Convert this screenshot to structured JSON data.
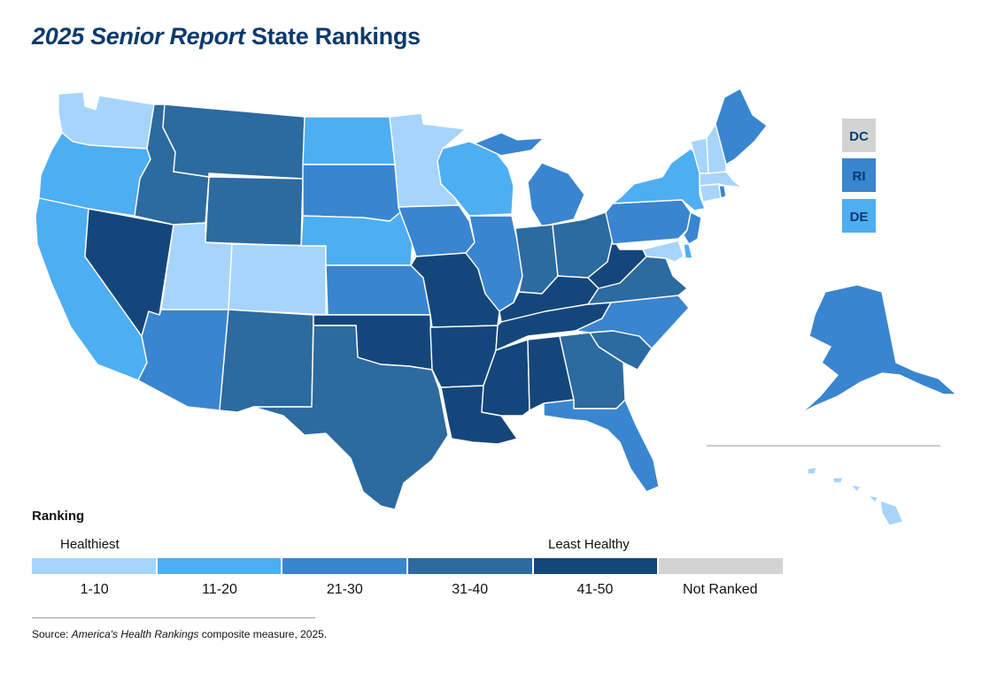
{
  "title": {
    "italic": "2025 Senior Report",
    "rest": " State Rankings"
  },
  "colors": {
    "1-10": "#a7d4fb",
    "11-20": "#4eaef2",
    "21-30": "#3a85d0",
    "31-40": "#2c6aa0",
    "41-50": "#15467b",
    "Not Ranked": "#d3d3d3",
    "title": "#0b3b6e"
  },
  "legend": {
    "heading": "Ranking",
    "healthiest": "Healthiest",
    "least_healthy": "Least Healthy",
    "categories": [
      "1-10",
      "11-20",
      "21-30",
      "31-40",
      "41-50",
      "Not Ranked"
    ]
  },
  "small_states": [
    {
      "abbr": "DC",
      "category": "Not Ranked"
    },
    {
      "abbr": "RI",
      "category": "21-30"
    },
    {
      "abbr": "DE",
      "category": "11-20"
    }
  ],
  "state_categories": {
    "WA": "1-10",
    "OR": "11-20",
    "CA": "11-20",
    "NV": "41-50",
    "ID": "31-40",
    "MT": "31-40",
    "WY": "31-40",
    "UT": "1-10",
    "CO": "1-10",
    "AZ": "21-30",
    "NM": "31-40",
    "ND": "11-20",
    "SD": "21-30",
    "NE": "11-20",
    "KS": "21-30",
    "OK": "41-50",
    "TX": "31-40",
    "MN": "1-10",
    "IA": "21-30",
    "MO": "41-50",
    "AR": "41-50",
    "LA": "41-50",
    "WI": "11-20",
    "IL": "21-30",
    "MI": "21-30",
    "IN": "31-40",
    "OH": "31-40",
    "KY": "41-50",
    "TN": "41-50",
    "MS": "41-50",
    "AL": "41-50",
    "GA": "31-40",
    "FL": "21-30",
    "SC": "31-40",
    "NC": "21-30",
    "VA": "31-40",
    "WV": "41-50",
    "PA": "21-30",
    "NY": "11-20",
    "NJ": "21-30",
    "MD": "1-10",
    "DE": "11-20",
    "CT": "1-10",
    "RI": "21-30",
    "MA": "1-10",
    "VT": "1-10",
    "NH": "1-10",
    "ME": "21-30",
    "AK": "21-30",
    "HI": "1-10"
  },
  "source": {
    "prefix": "Source: ",
    "italic": "America's Health Rankings",
    "suffix": " composite measure, 2025."
  }
}
